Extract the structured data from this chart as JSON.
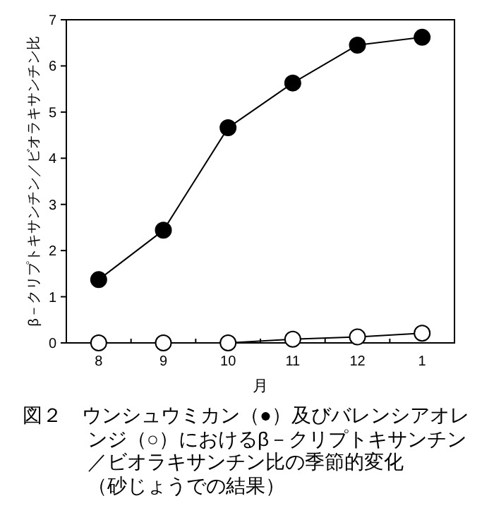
{
  "chart_data": {
    "type": "line",
    "title": "図２　ウンシュウミカン（●）及びバレンシアオレンジ（○）におけるβ－クリプトキサンチン／ビオラキサンチン比の季節的変化",
    "subtitle": "（砂じょうでの結果）",
    "xlabel": "月",
    "ylabel": "β－クリプトキサンチン／ビオラキサンチン比",
    "categories": [
      "8",
      "9",
      "10",
      "11",
      "12",
      "1"
    ],
    "series": [
      {
        "color": "#000000",
        "values": [
          1.37,
          2.44,
          4.66,
          5.63,
          6.45,
          6.62
        ]
      },
      {
        "color": "#ffffff",
        "values": [
          0,
          0,
          0,
          0.08,
          0.13,
          0.21
        ]
      }
    ],
    "ylim": [
      0,
      7
    ],
    "yticks": [
      0,
      1,
      2,
      3,
      4,
      5,
      6,
      7
    ],
    "grid": false,
    "marker": "circle",
    "line_style": "solid"
  }
}
